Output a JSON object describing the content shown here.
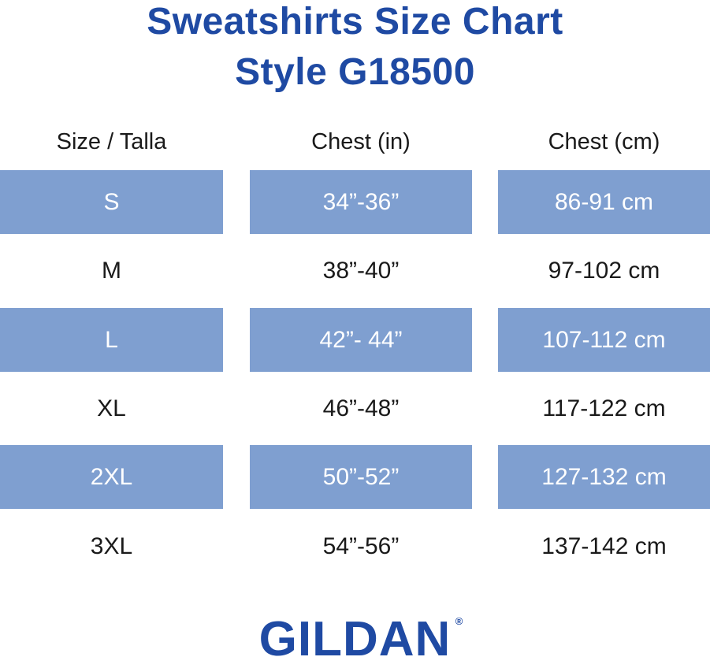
{
  "title": {
    "line1": "Sweatshirts Size Chart",
    "line2": "Style G18500"
  },
  "table": {
    "headers": [
      "Size / Talla",
      "Chest (in)",
      "Chest (cm)"
    ],
    "rows": [
      {
        "size": "S",
        "chest_in": "34”-36”",
        "chest_cm": "86-91 cm",
        "shaded": true
      },
      {
        "size": "M",
        "chest_in": "38”-40”",
        "chest_cm": "97-102 cm",
        "shaded": false
      },
      {
        "size": "L",
        "chest_in": "42”- 44”",
        "chest_cm": "107-112 cm",
        "shaded": true
      },
      {
        "size": "XL",
        "chest_in": "46”-48”",
        "chest_cm": "117-122 cm",
        "shaded": false
      },
      {
        "size": "2XL",
        "chest_in": "50”-52”",
        "chest_cm": "127-132 cm",
        "shaded": true
      },
      {
        "size": "3XL",
        "chest_in": "54”-56”",
        "chest_cm": "137-142 cm",
        "shaded": false
      }
    ]
  },
  "logo": {
    "text": "GILDAN",
    "registered_mark": "®"
  },
  "colors": {
    "brand_blue": "#1f4aa3",
    "row_shade": "#7f9fd0",
    "text_dark": "#1a1a1a"
  }
}
